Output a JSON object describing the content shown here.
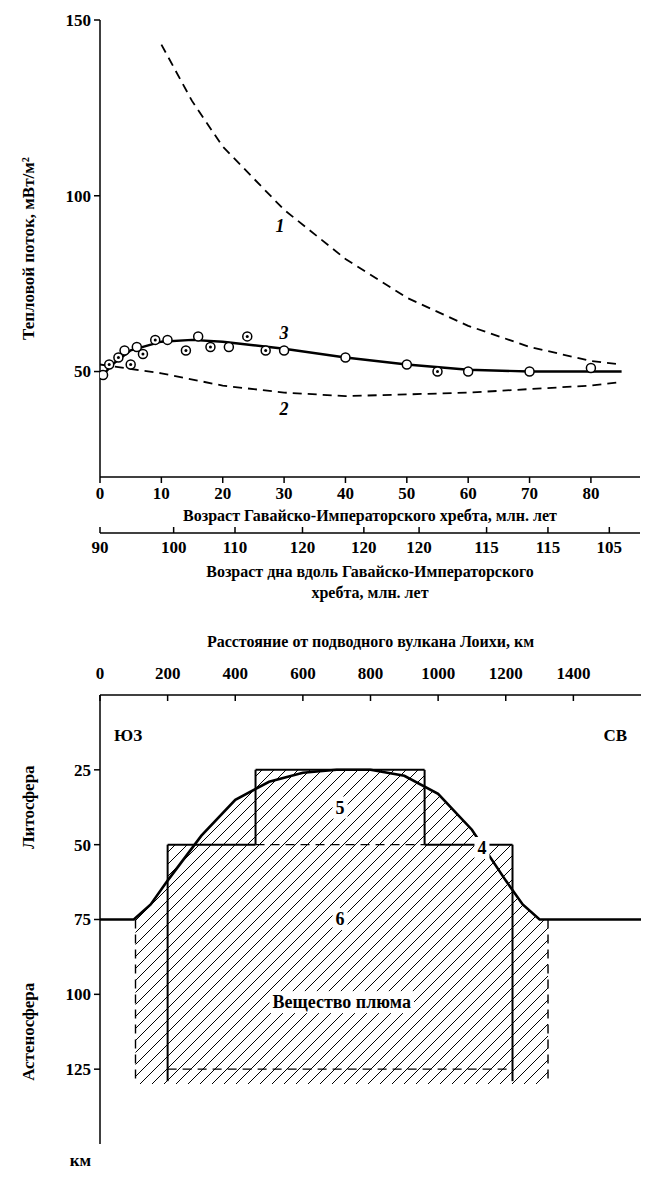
{
  "chart_data": [
    {
      "type": "line",
      "xlabel": "Возраст Гавайско-Императорского хребта, млн. лет",
      "ylabel": "Тепловой поток, мВт/м²",
      "x2label": "Возраст дна вдоль Гавайско-Императорского хребта, млн. лет",
      "xlim": [
        0,
        88
      ],
      "xticks": [
        0,
        10,
        20,
        30,
        40,
        50,
        60,
        70,
        80
      ],
      "x2ticks": [
        {
          "value": 0,
          "label": "90"
        },
        {
          "value": 12,
          "label": "100"
        },
        {
          "value": 22,
          "label": "110"
        },
        {
          "value": 33,
          "label": "120"
        },
        {
          "value": 43,
          "label": "120"
        },
        {
          "value": 52,
          "label": "120"
        },
        {
          "value": 63,
          "label": "115"
        },
        {
          "value": 73,
          "label": "115"
        },
        {
          "value": 83,
          "label": "105"
        }
      ],
      "ylim": [
        20,
        150
      ],
      "yticks": [
        50,
        100,
        150
      ],
      "series": [
        {
          "name": "1",
          "type": "line",
          "line_style": "dashed",
          "color": "#000000",
          "x": [
            10,
            15,
            20,
            30,
            40,
            50,
            60,
            70,
            80,
            85
          ],
          "values": [
            143,
            127,
            114,
            96,
            82,
            71,
            63,
            57,
            53,
            52
          ]
        },
        {
          "name": "2",
          "type": "line",
          "line_style": "dashed",
          "color": "#000000",
          "x": [
            0,
            10,
            20,
            30,
            40,
            50,
            60,
            70,
            80,
            85
          ],
          "values": [
            52,
            49.5,
            46,
            44,
            43,
            43.5,
            44,
            45,
            46,
            47
          ]
        },
        {
          "name": "3",
          "type": "line",
          "line_style": "solid",
          "color": "#000000",
          "x": [
            0,
            2,
            5,
            10,
            15,
            20,
            25,
            30,
            40,
            50,
            60,
            70,
            80,
            85
          ],
          "values": [
            48,
            52,
            56,
            58.5,
            59,
            58.5,
            57.5,
            56.5,
            54,
            52,
            50.5,
            50,
            50,
            50
          ]
        },
        {
          "type": "scatter",
          "marker": "circle",
          "color": "#000000",
          "x": [
            0.5,
            4,
            6,
            11,
            16,
            21,
            30,
            40,
            50,
            60,
            70,
            80
          ],
          "values": [
            49,
            56,
            57,
            59,
            60,
            57,
            56,
            54,
            52,
            50,
            50,
            51
          ]
        },
        {
          "type": "scatter",
          "marker": "circle-dot",
          "color": "#000000",
          "x": [
            1.5,
            3,
            5,
            7,
            9,
            14,
            18,
            24,
            27,
            55
          ],
          "values": [
            52,
            54,
            52,
            55,
            59,
            56,
            57,
            60,
            56,
            50
          ]
        }
      ]
    },
    {
      "type": "cross_section",
      "xlabel": "Расстояние от подводного вулкана Лоихи, км",
      "ylabel": "км",
      "xlim": [
        0,
        1600
      ],
      "xticks": [
        0,
        200,
        400,
        600,
        800,
        1000,
        1200,
        1400
      ],
      "ylim": [
        150,
        0
      ],
      "yticks": [
        25,
        50,
        75,
        100,
        125
      ],
      "layers": [
        {
          "label": "Литосфера",
          "depth": [
            0,
            75
          ]
        },
        {
          "label": "Астеносфера",
          "depth": [
            75,
            150
          ]
        }
      ],
      "directions": [
        "ЮЗ",
        "СВ"
      ],
      "color": "#000000",
      "series": [
        {
          "name": "4",
          "type": "line",
          "line_style": "solid",
          "color": "#000000",
          "x": [
            0,
            100,
            150,
            200,
            300,
            400,
            500,
            600,
            700,
            800,
            900,
            1000,
            1100,
            1200,
            1250,
            1300,
            1600
          ],
          "values": [
            75,
            75,
            70,
            62,
            47,
            35,
            29,
            26,
            25,
            25,
            27,
            33,
            45,
            62,
            70,
            75,
            75
          ]
        }
      ],
      "boxes": [
        {
          "name": "5",
          "x": [
            460,
            960
          ],
          "values": [
            25,
            50
          ]
        },
        {
          "name": "6",
          "x": [
            200,
            1220
          ],
          "values": [
            50,
            125
          ]
        }
      ],
      "plume": {
        "name": "Вещество плюма",
        "x": [
          105,
          1325
        ],
        "values": [
          75,
          130
        ]
      }
    }
  ]
}
